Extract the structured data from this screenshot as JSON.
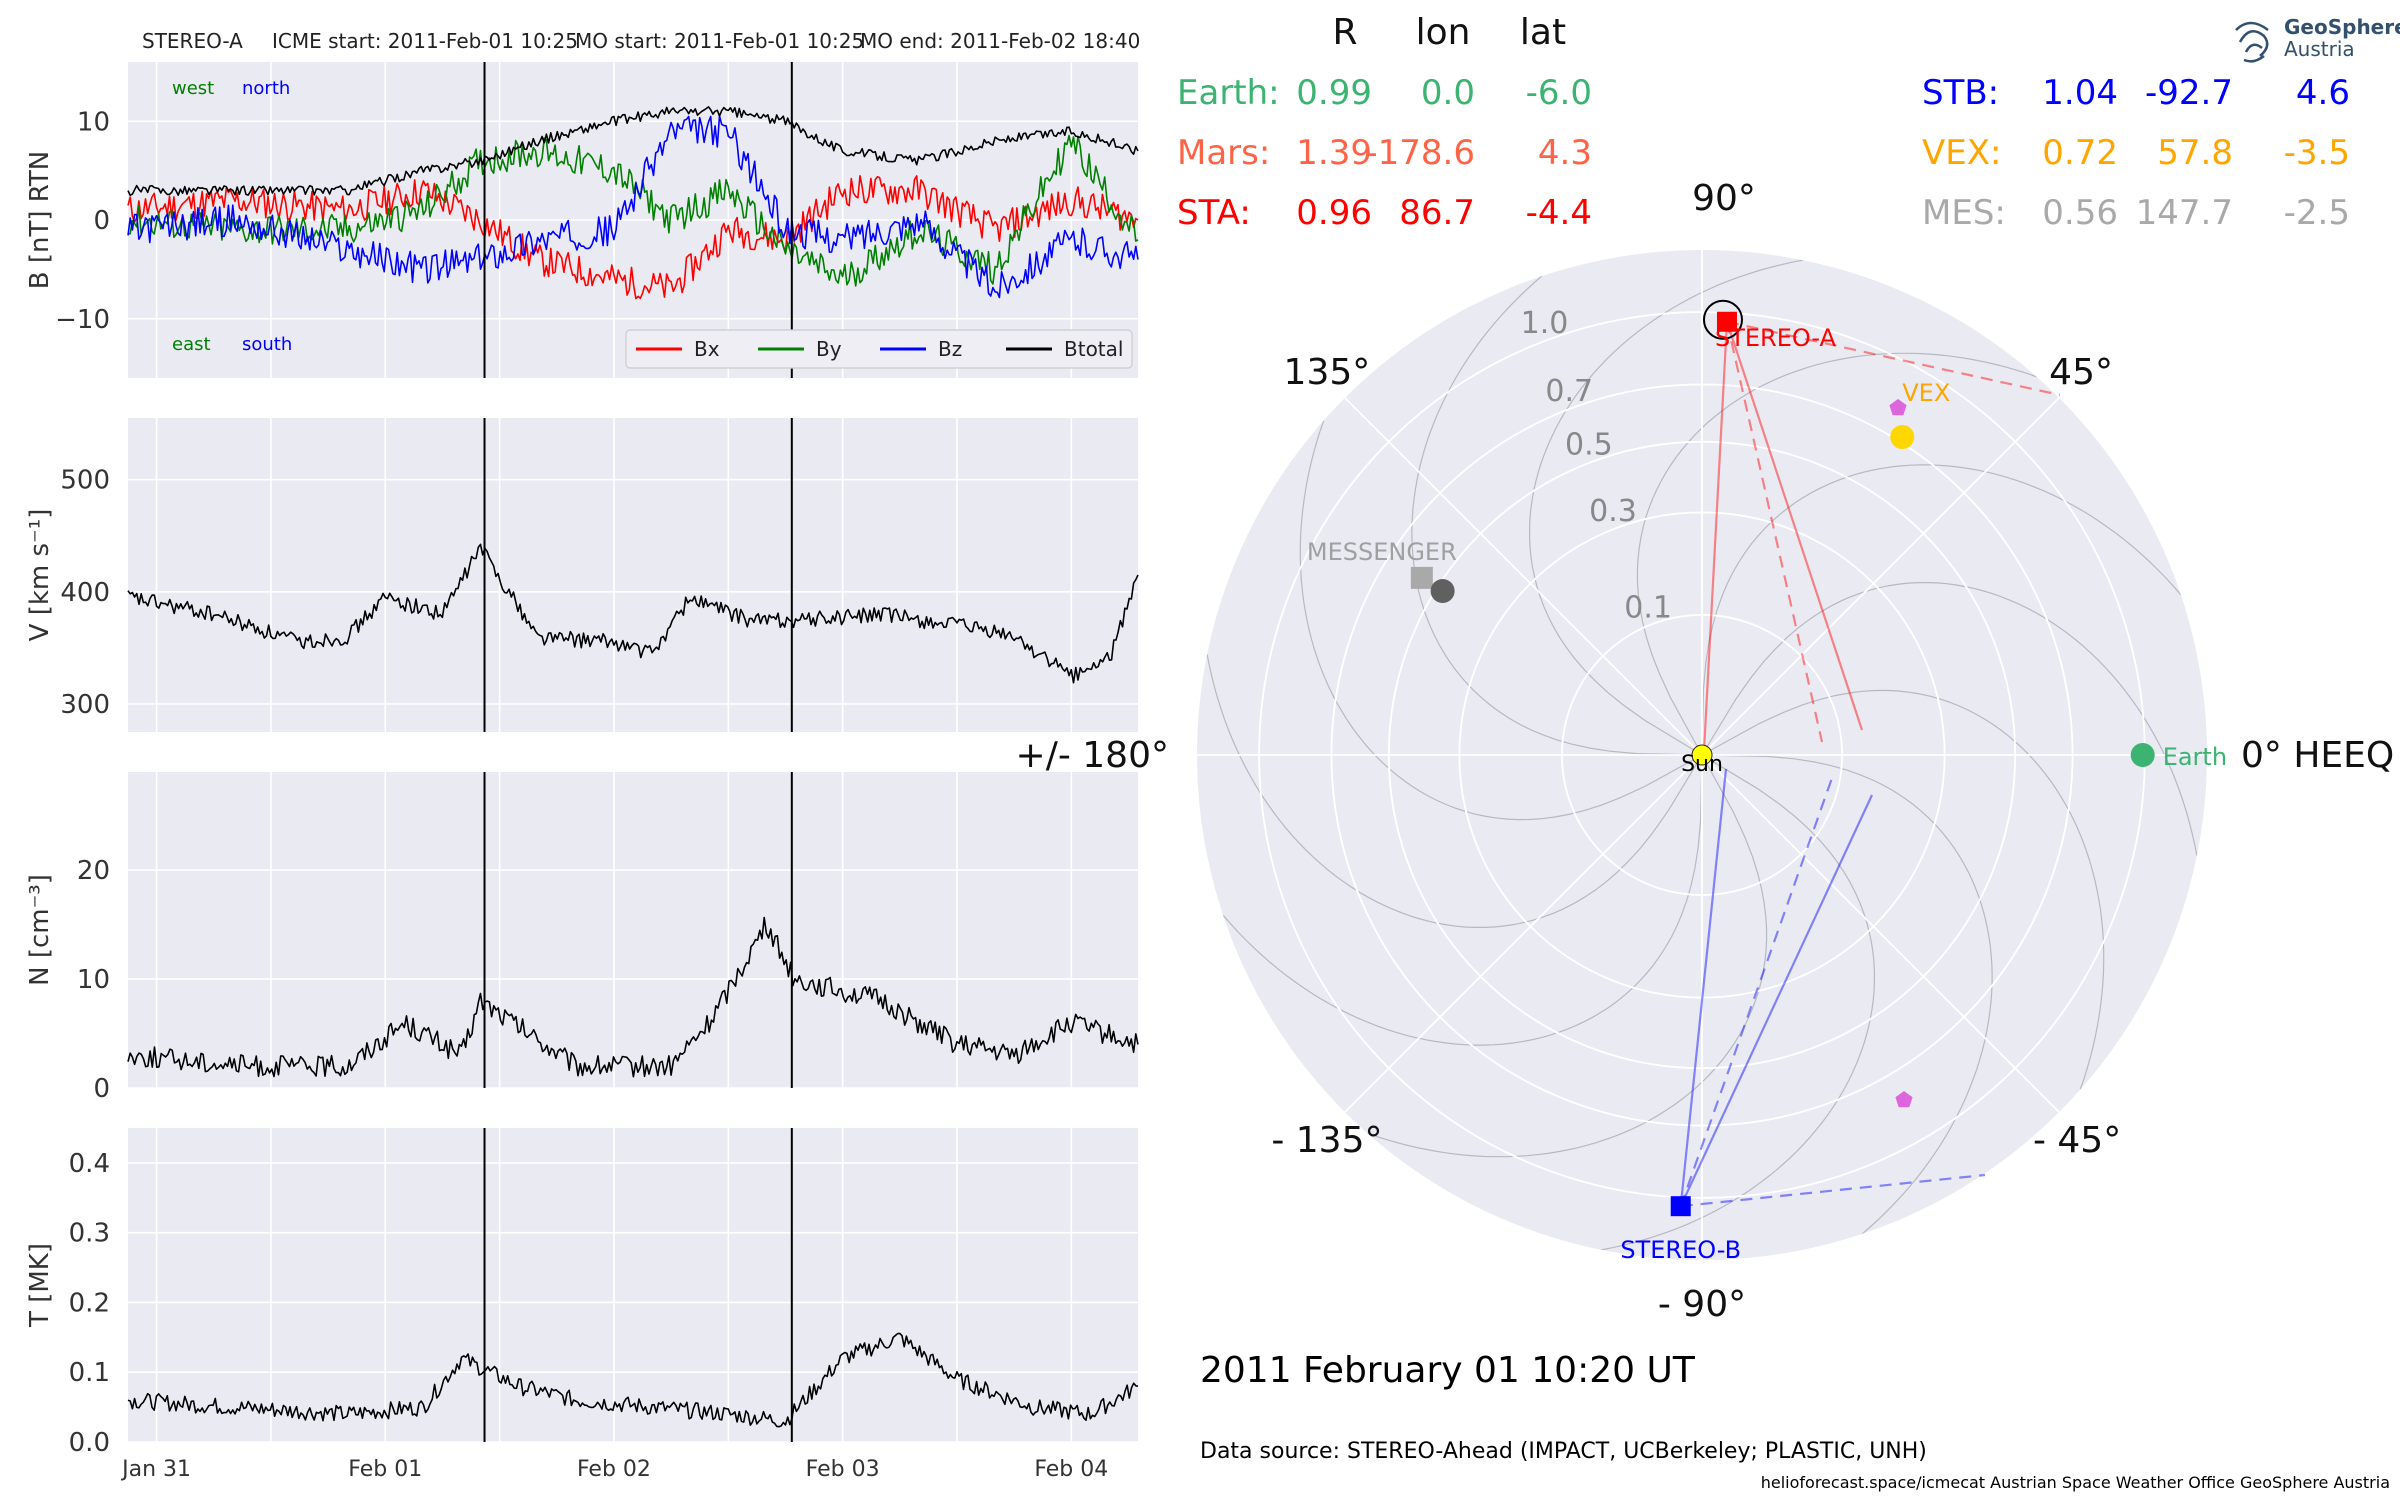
{
  "header": {
    "spacecraft": "STEREO-A",
    "icme_start": "ICME start: 2011-Feb-01 10:25",
    "mo_start": "MO start: 2011-Feb-01 10:25",
    "mo_end": "MO end: 2011-Feb-02 18:40"
  },
  "logo": {
    "line1": "GeoSphere",
    "line2": "Austria"
  },
  "colors": {
    "bx": "#ff0000",
    "by": "#008000",
    "bz": "#0000ff",
    "btotal": "#000000",
    "earth": "#3cb371",
    "mars": "#ff6347",
    "sta": "#ff0000",
    "stb": "#0000ff",
    "vex": "#ffa500",
    "mes": "#a9a9a9",
    "panel_bg": "#eaeaf2"
  },
  "position_table": {
    "headers": [
      "R",
      "lon",
      "lat"
    ],
    "rows_left": [
      {
        "label": "Earth:",
        "R": "0.99",
        "lon": "0.0",
        "lat": "-6.0",
        "color": "#3cb371"
      },
      {
        "label": "Mars:",
        "R": "1.39",
        "lon": "-178.6",
        "lat": "4.3",
        "color": "#ff6347"
      },
      {
        "label": "STA:",
        "R": "0.96",
        "lon": "86.7",
        "lat": "-4.4",
        "color": "#ff0000"
      }
    ],
    "rows_right": [
      {
        "label": "STB:",
        "R": "1.04",
        "lon": "-92.7",
        "lat": "4.6",
        "color": "#0000ff"
      },
      {
        "label": "VEX:",
        "R": "0.72",
        "lon": "57.8",
        "lat": "-3.5",
        "color": "#ffa500"
      },
      {
        "label": "MES:",
        "R": "0.56",
        "lon": "147.7",
        "lat": "-2.5",
        "color": "#a9a9a9"
      }
    ]
  },
  "polar": {
    "angle_labels": [
      {
        "text": "90°",
        "deg": 90
      },
      {
        "text": "45°",
        "deg": 45
      },
      {
        "text": "0° HEEQ",
        "deg": 0
      },
      {
        "text": "- 45°",
        "deg": -45
      },
      {
        "text": "- 90°",
        "deg": -90
      },
      {
        "text": "- 135°",
        "deg": -135
      },
      {
        "text": "+/- 180°",
        "deg": 180
      },
      {
        "text": "135°",
        "deg": 135
      }
    ],
    "radial_ticks": [
      "0.1",
      "0.3",
      "0.5",
      "0.7",
      "1.0"
    ],
    "radial_values": [
      0.1,
      0.3,
      0.5,
      0.7,
      1.0
    ],
    "bodies": [
      {
        "name": "Earth",
        "r": 0.99,
        "lon": 0.0,
        "marker": "circle",
        "color": "#3cb371"
      },
      {
        "name": "STEREO-A",
        "r": 0.96,
        "lon": 86.7,
        "marker": "square",
        "color": "#ff0000"
      },
      {
        "name": "STEREO-B",
        "r": 1.04,
        "lon": -92.7,
        "marker": "square",
        "color": "#0000ff"
      },
      {
        "name": "VEX",
        "r": 0.72,
        "lon": 57.8,
        "marker": "circle",
        "color": "#ffd700"
      },
      {
        "name": "MESSENGER",
        "r": 0.56,
        "lon": 147.7,
        "marker": "square",
        "color": "#a9a9a9"
      },
      {
        "name": "",
        "r": 0.48,
        "lon": 147.7,
        "marker": "circle",
        "color": "#606060"
      },
      {
        "name": "Sun",
        "r": 0.0,
        "lon": 0.0,
        "marker": "circle",
        "color": "#ffff00"
      }
    ]
  },
  "datetime": "2011 February 01  10:20 UT",
  "footer": {
    "source": "Data source: STEREO-Ahead (IMPACT, UCBerkeley; PLASTIC, UNH)",
    "credits": "helioforecast.space/icmecat   Austrian Space Weather Office   GeoSphere Austria"
  },
  "chart_data": [
    {
      "type": "line",
      "ylabel": "B [nT] RTN",
      "xlim": [
        "2011-01-30T21:00",
        "2011-02-04T07:00"
      ],
      "ylim": [
        -16,
        16
      ],
      "yticks": [
        -10,
        0,
        10
      ],
      "xtick_labels": [
        "Jan 31",
        "Feb 01",
        "Feb 02",
        "Feb 03",
        "Feb 04"
      ],
      "event_lines": [
        "2011-02-01T10:25",
        "2011-02-02T18:40"
      ],
      "annotations": {
        "west": "west",
        "north": "north",
        "east": "east",
        "south": "south"
      },
      "legend": {
        "placement": "lower-right",
        "entries": [
          "Bx",
          "By",
          "Bz",
          "Btotal"
        ]
      },
      "series": [
        {
          "name": "Bx",
          "x": [
            "2011-01-30T21:00",
            "2011-01-31T08:00",
            "2011-01-31T20:00",
            "2011-02-01T04:00",
            "2011-02-01T10:00",
            "2011-02-01T16:00",
            "2011-02-02T00:00",
            "2011-02-02T06:00",
            "2011-02-02T12:00",
            "2011-02-02T18:00",
            "2011-02-03T00:00",
            "2011-02-03T08:00",
            "2011-02-03T16:00",
            "2011-02-04T00:00",
            "2011-02-04T07:00"
          ],
          "y": [
            1,
            2,
            1,
            3,
            0,
            -4,
            -6,
            -7,
            -1,
            -2,
            3,
            3,
            -1,
            2,
            0
          ]
        },
        {
          "name": "By",
          "x": [
            "2011-01-30T21:00",
            "2011-01-31T08:00",
            "2011-01-31T20:00",
            "2011-02-01T04:00",
            "2011-02-01T10:00",
            "2011-02-01T16:00",
            "2011-02-02T00:00",
            "2011-02-02T06:00",
            "2011-02-02T12:00",
            "2011-02-02T18:00",
            "2011-02-03T00:00",
            "2011-02-03T08:00",
            "2011-02-03T16:00",
            "2011-02-04T00:00",
            "2011-02-04T07:00"
          ],
          "y": [
            0,
            -1,
            -1,
            1,
            6,
            7,
            5,
            0,
            3,
            -3,
            -6,
            -1,
            -5,
            8,
            -2
          ]
        },
        {
          "name": "Bz",
          "x": [
            "2011-01-30T21:00",
            "2011-01-31T08:00",
            "2011-01-31T20:00",
            "2011-02-01T04:00",
            "2011-02-01T10:00",
            "2011-02-01T16:00",
            "2011-02-02T00:00",
            "2011-02-02T06:00",
            "2011-02-02T12:00",
            "2011-02-02T18:00",
            "2011-02-03T00:00",
            "2011-02-03T08:00",
            "2011-02-03T16:00",
            "2011-02-04T00:00",
            "2011-02-04T07:00"
          ],
          "y": [
            -1,
            0,
            -3,
            -5,
            -4,
            -2,
            -1,
            9,
            9,
            -1,
            -2,
            0,
            -7,
            -2,
            -4
          ]
        },
        {
          "name": "Btotal",
          "x": [
            "2011-01-30T21:00",
            "2011-01-31T08:00",
            "2011-01-31T20:00",
            "2011-02-01T04:00",
            "2011-02-01T10:00",
            "2011-02-01T16:00",
            "2011-02-02T00:00",
            "2011-02-02T06:00",
            "2011-02-02T12:00",
            "2011-02-02T18:00",
            "2011-02-03T00:00",
            "2011-02-03T08:00",
            "2011-02-03T16:00",
            "2011-02-04T00:00",
            "2011-02-04T07:00"
          ],
          "y": [
            3,
            3,
            3,
            5,
            6,
            8,
            10,
            11,
            11,
            10,
            7,
            6,
            8,
            9,
            7
          ]
        }
      ]
    },
    {
      "type": "line",
      "ylabel": "V [km s$^{-1}$]",
      "ylim": [
        275,
        555
      ],
      "yticks": [
        300,
        400,
        500
      ],
      "series": [
        {
          "name": "V",
          "x": [
            "2011-01-30T21:00",
            "2011-01-31T06:00",
            "2011-01-31T15:00",
            "2011-01-31T20:00",
            "2011-02-01T00:00",
            "2011-02-01T06:00",
            "2011-02-01T10:00",
            "2011-02-01T16:00",
            "2011-02-02T00:00",
            "2011-02-02T04:00",
            "2011-02-02T08:00",
            "2011-02-02T14:00",
            "2011-02-02T20:00",
            "2011-02-03T04:00",
            "2011-02-03T12:00",
            "2011-02-03T18:00",
            "2011-02-04T00:00",
            "2011-02-04T04:00",
            "2011-02-04T07:00"
          ],
          "y": [
            395,
            380,
            355,
            360,
            395,
            380,
            440,
            360,
            355,
            345,
            395,
            375,
            375,
            380,
            370,
            360,
            325,
            340,
            415
          ]
        }
      ]
    },
    {
      "type": "line",
      "ylabel": "N [cm$^{-3}$]",
      "ylim": [
        0,
        29
      ],
      "yticks": [
        0,
        10,
        20
      ],
      "series": [
        {
          "name": "N",
          "x": [
            "2011-01-30T21:00",
            "2011-01-31T10:00",
            "2011-01-31T20:00",
            "2011-02-01T02:00",
            "2011-02-01T08:00",
            "2011-02-01T10:00",
            "2011-02-01T20:00",
            "2011-02-02T06:00",
            "2011-02-02T10:00",
            "2011-02-02T16:00",
            "2011-02-02T19:00",
            "2011-02-03T04:00",
            "2011-02-03T12:00",
            "2011-02-03T18:00",
            "2011-02-04T00:00",
            "2011-02-04T07:00"
          ],
          "y": [
            3,
            2,
            2,
            6,
            3,
            8,
            2,
            2,
            6,
            15,
            10,
            8,
            4,
            3,
            6,
            4
          ]
        }
      ]
    },
    {
      "type": "line",
      "ylabel": "T [MK]",
      "ylim": [
        0,
        0.45
      ],
      "yticks": [
        0.0,
        0.1,
        0.2,
        0.3,
        0.4
      ],
      "series": [
        {
          "name": "T",
          "x": [
            "2011-01-30T21:00",
            "2011-01-31T08:00",
            "2011-01-31T20:00",
            "2011-02-01T04:00",
            "2011-02-01T08:00",
            "2011-02-01T14:00",
            "2011-02-01T20:00",
            "2011-02-02T04:00",
            "2011-02-02T12:00",
            "2011-02-02T18:00",
            "2011-02-03T00:00",
            "2011-02-03T06:00",
            "2011-02-03T12:00",
            "2011-02-03T20:00",
            "2011-02-04T02:00",
            "2011-02-04T07:00"
          ],
          "y": [
            0.06,
            0.05,
            0.04,
            0.05,
            0.12,
            0.08,
            0.06,
            0.05,
            0.04,
            0.03,
            0.12,
            0.15,
            0.09,
            0.05,
            0.04,
            0.08
          ]
        }
      ]
    }
  ]
}
